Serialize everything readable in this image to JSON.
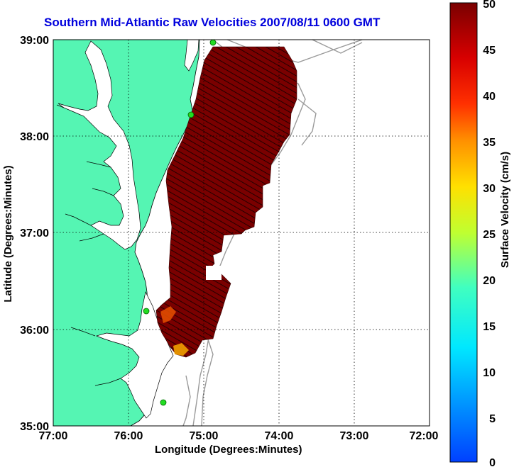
{
  "title": "Southern Mid-Atlantic Raw Velocities 2007/08/11 0600 GMT",
  "axes": {
    "xlabel": "Longitude (Degrees:Minutes)",
    "ylabel": "Latitude (Degrees:Minutes)",
    "x_ticks": [
      "77:00",
      "76:00",
      "75:00",
      "74:00",
      "73:00",
      "72:00"
    ],
    "y_ticks": [
      "39:00",
      "38:00",
      "37:00",
      "36:00",
      "35:00"
    ],
    "x_range_deg_west": [
      77,
      72
    ],
    "y_range_deg_north": [
      35,
      39
    ],
    "grid": "dotted"
  },
  "colorbar": {
    "label": "Surface Velocity (cm/s)",
    "ticks": [
      "50",
      "45",
      "40",
      "35",
      "30",
      "25",
      "20",
      "15",
      "10",
      "5",
      "0"
    ],
    "range": [
      0,
      50
    ],
    "colormap": "jet"
  },
  "colors": {
    "land": "#55f5b3",
    "water": "#ffffff",
    "title": "#0000dd",
    "velocity_field": "#7a0000",
    "bathymetry": "#9a9a9a",
    "station": "#22dd22"
  },
  "stations": [
    {
      "lon": 74.87,
      "lat": 38.97
    },
    {
      "lon": 75.12,
      "lat": 38.22
    },
    {
      "lon": 75.7,
      "lat": 36.19
    },
    {
      "lon": 75.48,
      "lat": 35.27
    }
  ]
}
